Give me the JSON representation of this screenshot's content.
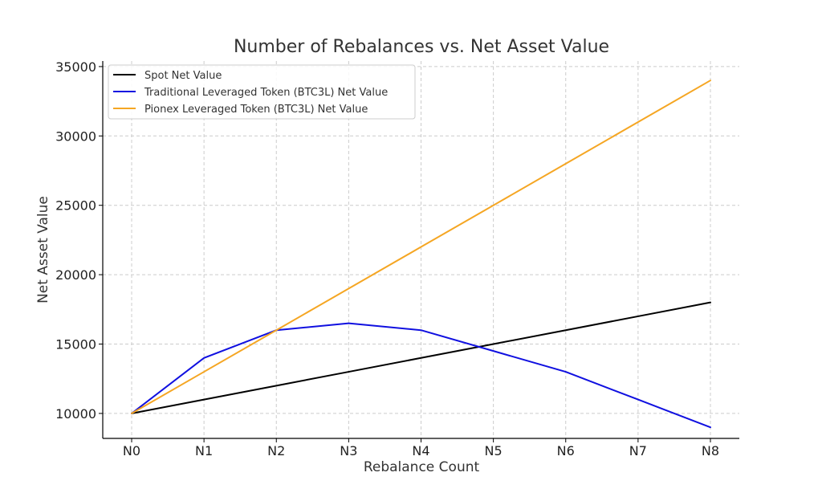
{
  "chart_data": {
    "type": "line",
    "title": "Number of Rebalances vs. Net Asset Value",
    "xlabel": "Rebalance Count",
    "ylabel": "Net Asset Value",
    "categories": [
      "N0",
      "N1",
      "N2",
      "N3",
      "N4",
      "N5",
      "N6",
      "N7",
      "N8"
    ],
    "ylim": [
      8200,
      35400
    ],
    "yticks": [
      10000,
      15000,
      20000,
      25000,
      30000,
      35000
    ],
    "grid": true,
    "legend_position": "top-left",
    "series": [
      {
        "name": "Spot Net Value",
        "color": "#000000",
        "values": [
          10000,
          11000,
          12000,
          13000,
          14000,
          15000,
          16000,
          17000,
          18000
        ]
      },
      {
        "name": "Traditional Leveraged Token (BTC3L) Net Value",
        "color": "#1010e0",
        "values": [
          10000,
          14000,
          16000,
          16500,
          16000,
          14500,
          13000,
          11000,
          9000
        ]
      },
      {
        "name": "Pionex Leveraged Token (BTC3L) Net Value",
        "color": "#f5a623",
        "values": [
          10000,
          13000,
          16000,
          19000,
          22000,
          25000,
          28000,
          31000,
          34000
        ]
      }
    ]
  }
}
